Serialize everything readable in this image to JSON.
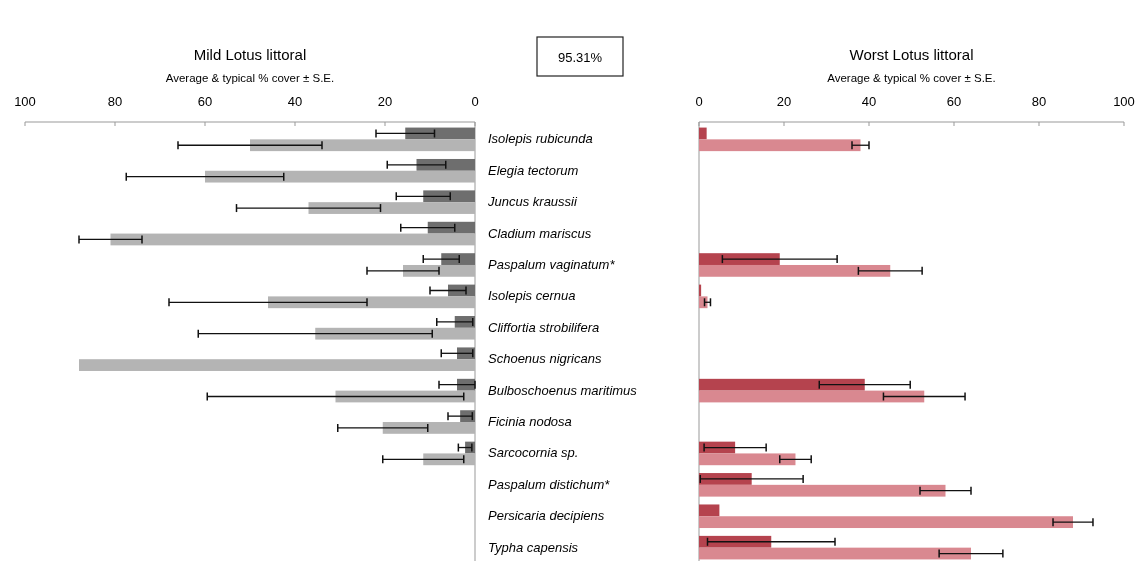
{
  "chart_data": [
    {
      "type": "bar",
      "orientation": "horizontal",
      "title": "Mild Lotus littoral",
      "xlabel": "Average & typical % cover ± S.E.",
      "xlim": [
        100,
        0
      ],
      "xticks": [
        100,
        80,
        60,
        40,
        20,
        0
      ],
      "categories": [
        "Isolepis rubicunda",
        "Elegia tectorum",
        "Juncus kraussii",
        "Cladium mariscus",
        "Paspalum vaginatum*",
        "Isolepis cernua",
        "Cliffortia strobilifera",
        "Schoenus nigricans",
        "Bulboschoenus maritimus",
        "Ficinia nodosa",
        "Sarcocornia sp.",
        "Paspalum distichum*",
        "Persicaria decipiens",
        "Typha capensis"
      ],
      "annotations": [
        "95.31%"
      ],
      "series": [
        {
          "color": "#6e6e6e",
          "values": [
            15.5,
            13,
            11.5,
            10.5,
            7.5,
            6,
            4.5,
            4,
            4,
            3.3,
            2.2,
            null,
            null,
            null
          ],
          "errors": [
            6.5,
            6.5,
            6,
            6,
            4,
            4,
            4,
            3.5,
            4,
            2.7,
            1.5,
            null,
            null,
            null
          ]
        },
        {
          "color": "#b4b4b4",
          "values": [
            50,
            60,
            37,
            81,
            16,
            46,
            35.5,
            88,
            31,
            20.5,
            11.5,
            null,
            null,
            null
          ],
          "errors": [
            16,
            17.5,
            16,
            7,
            8,
            22,
            26,
            null,
            28.5,
            10,
            9,
            null,
            null,
            null
          ]
        }
      ]
    },
    {
      "type": "bar",
      "orientation": "horizontal",
      "title": "Worst Lotus littoral",
      "xlabel": "Average & typical % cover ± S.E.",
      "xlim": [
        0,
        100
      ],
      "xticks": [
        0,
        20,
        40,
        60,
        80,
        100
      ],
      "tick_labels": "x",
      "categories": [
        null,
        null,
        null,
        null,
        null,
        null,
        null,
        null,
        null,
        null,
        null,
        null,
        null,
        null
      ],
      "series": [
        {
          "color": "#b5434e",
          "values": [
            1.8,
            null,
            null,
            null,
            19,
            0.5,
            null,
            null,
            39,
            null,
            8.5,
            12.4,
            4.8,
            17
          ],
          "errors": [
            null,
            null,
            null,
            null,
            13.5,
            null,
            null,
            null,
            10.7,
            null,
            7.3,
            12.1,
            null,
            15
          ]
        },
        {
          "color": "#d98890",
          "values": [
            38,
            null,
            null,
            null,
            45,
            2,
            null,
            null,
            53,
            null,
            22.7,
            58,
            88,
            64
          ],
          "errors": [
            2,
            null,
            null,
            null,
            7.5,
            0.7,
            null,
            null,
            9.6,
            null,
            3.7,
            6,
            4.7,
            7.5
          ]
        }
      ]
    }
  ]
}
